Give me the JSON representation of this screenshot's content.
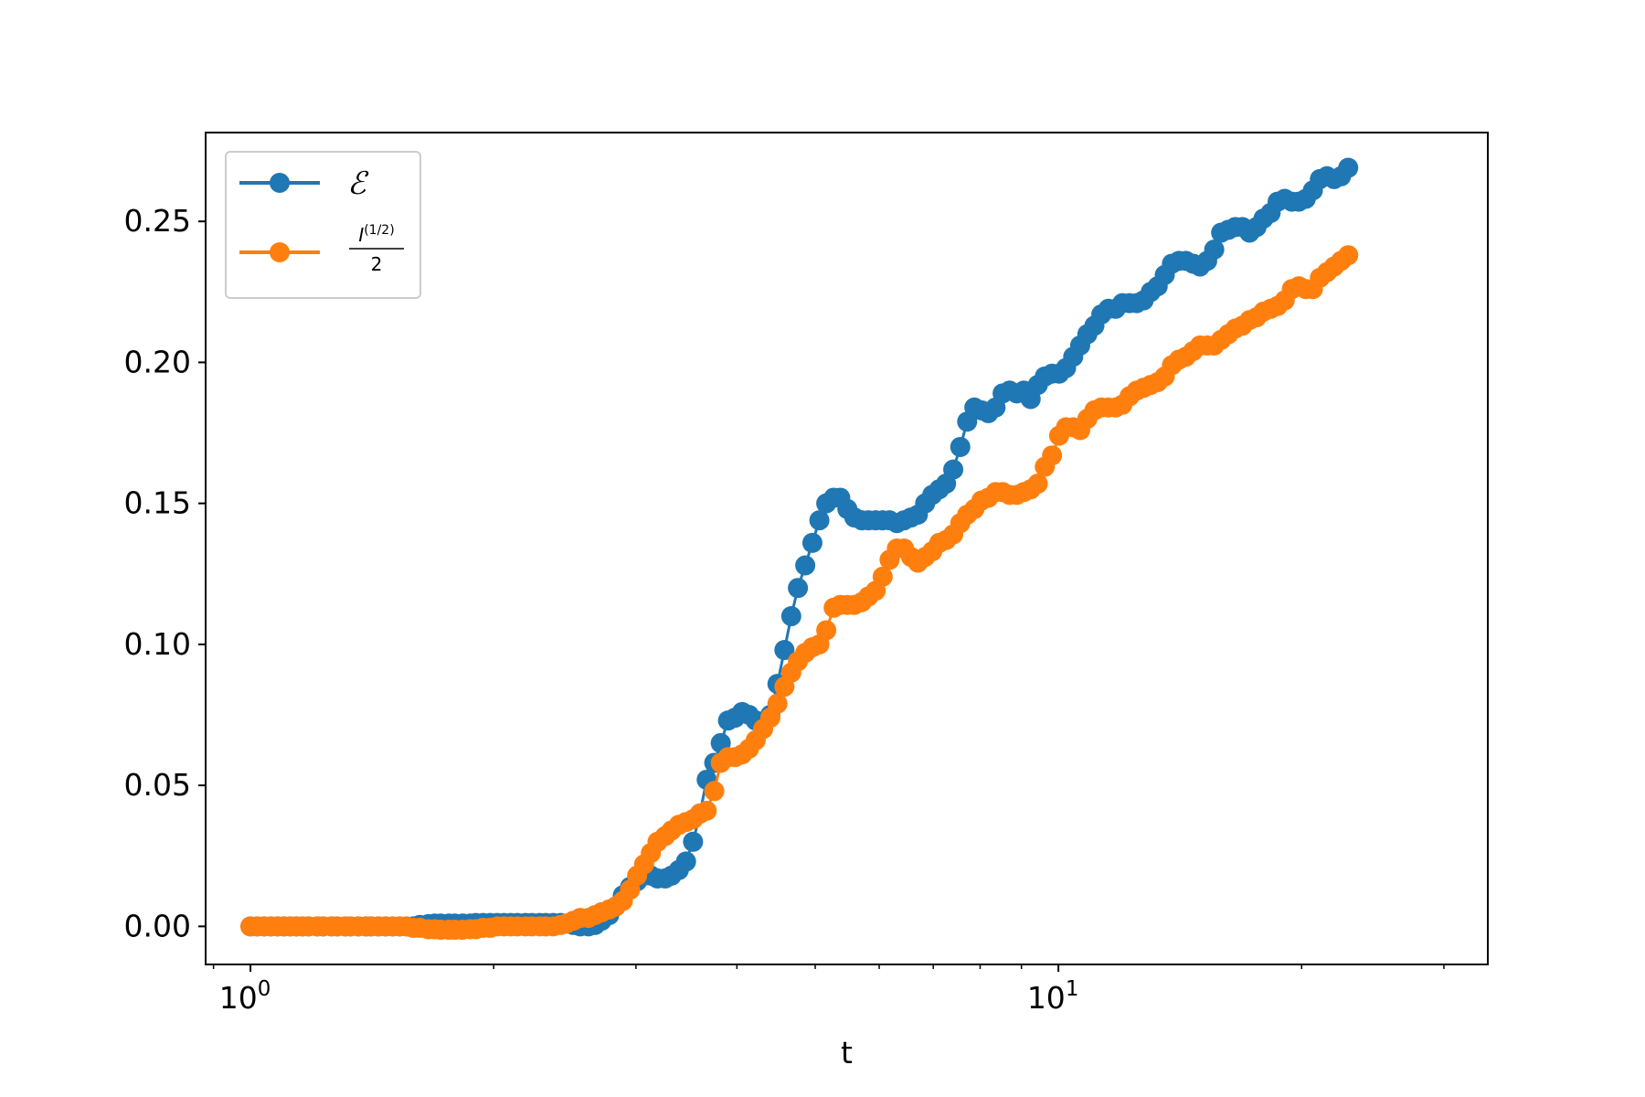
{
  "chart_data": {
    "type": "line",
    "title": "",
    "xlabel": "t",
    "ylabel": "",
    "xscale": "log",
    "xlim": [
      0.88,
      34
    ],
    "ylim": [
      -0.0135,
      0.2815
    ],
    "grid": false,
    "legend_position": "top-left",
    "x_ticks": [
      {
        "value": 1,
        "label": "10",
        "exp": "0"
      },
      {
        "value": 10,
        "label": "10",
        "exp": "1"
      }
    ],
    "y_ticks": [
      "0.00",
      "0.05",
      "0.10",
      "0.15",
      "0.20",
      "0.25"
    ],
    "series": [
      {
        "name": "ℰ",
        "color": "#1f77b4",
        "points": [
          [
            1.0,
            0.0
          ],
          [
            1.02,
            0.0
          ],
          [
            1.04,
            0.0
          ],
          [
            1.06,
            0.0
          ],
          [
            1.08,
            0.0
          ],
          [
            1.1,
            0.0
          ],
          [
            1.12,
            0.0
          ],
          [
            1.14,
            0.0
          ],
          [
            1.16,
            0.0
          ],
          [
            1.18,
            0.0
          ],
          [
            1.21,
            0.0
          ],
          [
            1.23,
            0.0
          ],
          [
            1.26,
            0.0
          ],
          [
            1.28,
            0.0
          ],
          [
            1.31,
            0.0
          ],
          [
            1.33,
            0.0
          ],
          [
            1.36,
            0.0
          ],
          [
            1.39,
            0.0
          ],
          [
            1.41,
            0.0
          ],
          [
            1.44,
            0.0
          ],
          [
            1.47,
            0.0
          ],
          [
            1.5,
            0.0
          ],
          [
            1.53,
            0.0
          ],
          [
            1.56,
            0.0
          ],
          [
            1.59,
            0.0
          ],
          [
            1.62,
            0.0005
          ],
          [
            1.66,
            0.0008
          ],
          [
            1.69,
            0.001
          ],
          [
            1.72,
            0.001
          ],
          [
            1.76,
            0.001
          ],
          [
            1.79,
            0.001
          ],
          [
            1.83,
            0.001
          ],
          [
            1.87,
            0.001
          ],
          [
            1.9,
            0.0012
          ],
          [
            1.94,
            0.0012
          ],
          [
            1.98,
            0.0012
          ],
          [
            2.02,
            0.0012
          ],
          [
            2.06,
            0.0012
          ],
          [
            2.1,
            0.0012
          ],
          [
            2.14,
            0.0012
          ],
          [
            2.19,
            0.0012
          ],
          [
            2.23,
            0.0012
          ],
          [
            2.28,
            0.0012
          ],
          [
            2.32,
            0.0012
          ],
          [
            2.37,
            0.0012
          ],
          [
            2.42,
            0.0012
          ],
          [
            2.46,
            0.001
          ],
          [
            2.51,
            0.0005
          ],
          [
            2.56,
            0.0
          ],
          [
            2.62,
            0.0
          ],
          [
            2.67,
            0.0005
          ],
          [
            2.72,
            0.002
          ],
          [
            2.78,
            0.004
          ],
          [
            2.83,
            0.007
          ],
          [
            2.89,
            0.011
          ],
          [
            2.95,
            0.014
          ],
          [
            3.01,
            0.016
          ],
          [
            3.07,
            0.018
          ],
          [
            3.13,
            0.018
          ],
          [
            3.19,
            0.017
          ],
          [
            3.26,
            0.017
          ],
          [
            3.32,
            0.018
          ],
          [
            3.39,
            0.02
          ],
          [
            3.46,
            0.023
          ],
          [
            3.53,
            0.03
          ],
          [
            3.6,
            0.04
          ],
          [
            3.67,
            0.052
          ],
          [
            3.75,
            0.058
          ],
          [
            3.82,
            0.065
          ],
          [
            3.9,
            0.073
          ],
          [
            3.98,
            0.074
          ],
          [
            4.06,
            0.076
          ],
          [
            4.14,
            0.075
          ],
          [
            4.22,
            0.073
          ],
          [
            4.31,
            0.072
          ],
          [
            4.4,
            0.075
          ],
          [
            4.49,
            0.086
          ],
          [
            4.58,
            0.098
          ],
          [
            4.67,
            0.11
          ],
          [
            4.76,
            0.12
          ],
          [
            4.86,
            0.128
          ],
          [
            4.96,
            0.136
          ],
          [
            5.06,
            0.144
          ],
          [
            5.16,
            0.15
          ],
          [
            5.27,
            0.152
          ],
          [
            5.37,
            0.152
          ],
          [
            5.48,
            0.148
          ],
          [
            5.59,
            0.145
          ],
          [
            5.71,
            0.144
          ],
          [
            5.82,
            0.144
          ],
          [
            5.94,
            0.144
          ],
          [
            6.06,
            0.144
          ],
          [
            6.18,
            0.144
          ],
          [
            6.31,
            0.143
          ],
          [
            6.44,
            0.144
          ],
          [
            6.57,
            0.145
          ],
          [
            6.7,
            0.146
          ],
          [
            6.84,
            0.15
          ],
          [
            6.98,
            0.153
          ],
          [
            7.12,
            0.155
          ],
          [
            7.26,
            0.157
          ],
          [
            7.41,
            0.162
          ],
          [
            7.56,
            0.17
          ],
          [
            7.71,
            0.179
          ],
          [
            7.87,
            0.184
          ],
          [
            8.03,
            0.183
          ],
          [
            8.19,
            0.182
          ],
          [
            8.36,
            0.184
          ],
          [
            8.53,
            0.189
          ],
          [
            8.7,
            0.19
          ],
          [
            8.88,
            0.189
          ],
          [
            9.06,
            0.19
          ],
          [
            9.24,
            0.187
          ],
          [
            9.43,
            0.192
          ],
          [
            9.62,
            0.195
          ],
          [
            9.82,
            0.196
          ],
          [
            10.02,
            0.196
          ],
          [
            10.22,
            0.198
          ],
          [
            10.43,
            0.202
          ],
          [
            10.64,
            0.206
          ],
          [
            10.86,
            0.21
          ],
          [
            11.08,
            0.213
          ],
          [
            11.3,
            0.217
          ],
          [
            11.53,
            0.219
          ],
          [
            11.77,
            0.219
          ],
          [
            12.0,
            0.221
          ],
          [
            12.25,
            0.221
          ],
          [
            12.5,
            0.221
          ],
          [
            12.75,
            0.222
          ],
          [
            13.01,
            0.225
          ],
          [
            13.27,
            0.227
          ],
          [
            13.54,
            0.231
          ],
          [
            13.82,
            0.235
          ],
          [
            14.1,
            0.236
          ],
          [
            14.38,
            0.236
          ],
          [
            14.68,
            0.235
          ],
          [
            14.97,
            0.234
          ],
          [
            15.28,
            0.236
          ],
          [
            15.59,
            0.24
          ],
          [
            15.9,
            0.246
          ],
          [
            16.23,
            0.247
          ],
          [
            16.56,
            0.248
          ],
          [
            16.89,
            0.248
          ],
          [
            17.24,
            0.246
          ],
          [
            17.59,
            0.248
          ],
          [
            17.94,
            0.251
          ],
          [
            18.31,
            0.253
          ],
          [
            18.68,
            0.257
          ],
          [
            19.06,
            0.258
          ],
          [
            19.45,
            0.257
          ],
          [
            19.84,
            0.257
          ],
          [
            20.24,
            0.258
          ],
          [
            20.65,
            0.261
          ],
          [
            21.07,
            0.265
          ],
          [
            21.5,
            0.266
          ],
          [
            21.94,
            0.265
          ],
          [
            22.38,
            0.266
          ],
          [
            22.84,
            0.269
          ]
        ]
      },
      {
        "name": "I^(1/2) / 2",
        "color": "#ff7f0e",
        "points": [
          [
            1.0,
            0.0
          ],
          [
            1.02,
            0.0
          ],
          [
            1.04,
            0.0
          ],
          [
            1.06,
            0.0
          ],
          [
            1.08,
            0.0
          ],
          [
            1.1,
            0.0
          ],
          [
            1.12,
            0.0
          ],
          [
            1.14,
            0.0
          ],
          [
            1.16,
            0.0
          ],
          [
            1.18,
            0.0
          ],
          [
            1.21,
            0.0
          ],
          [
            1.23,
            0.0
          ],
          [
            1.26,
            0.0
          ],
          [
            1.28,
            0.0
          ],
          [
            1.31,
            0.0
          ],
          [
            1.33,
            0.0
          ],
          [
            1.36,
            0.0
          ],
          [
            1.39,
            0.0
          ],
          [
            1.41,
            0.0
          ],
          [
            1.44,
            0.0
          ],
          [
            1.47,
            0.0
          ],
          [
            1.5,
            0.0
          ],
          [
            1.53,
            0.0
          ],
          [
            1.56,
            0.0
          ],
          [
            1.59,
            -0.0005
          ],
          [
            1.62,
            -0.0005
          ],
          [
            1.66,
            -0.001
          ],
          [
            1.69,
            -0.001
          ],
          [
            1.72,
            -0.0012
          ],
          [
            1.76,
            -0.0012
          ],
          [
            1.79,
            -0.0012
          ],
          [
            1.83,
            -0.0012
          ],
          [
            1.87,
            -0.001
          ],
          [
            1.9,
            -0.001
          ],
          [
            1.94,
            -0.0005
          ],
          [
            1.98,
            -0.0005
          ],
          [
            2.02,
            0.0
          ],
          [
            2.06,
            0.0
          ],
          [
            2.1,
            0.0
          ],
          [
            2.14,
            0.0
          ],
          [
            2.19,
            0.0
          ],
          [
            2.23,
            0.0
          ],
          [
            2.28,
            0.0
          ],
          [
            2.32,
            0.0
          ],
          [
            2.37,
            0.0
          ],
          [
            2.42,
            0.0005
          ],
          [
            2.46,
            0.001
          ],
          [
            2.51,
            0.002
          ],
          [
            2.56,
            0.003
          ],
          [
            2.62,
            0.003
          ],
          [
            2.67,
            0.004
          ],
          [
            2.72,
            0.005
          ],
          [
            2.78,
            0.006
          ],
          [
            2.83,
            0.007
          ],
          [
            2.89,
            0.009
          ],
          [
            2.95,
            0.013
          ],
          [
            3.01,
            0.018
          ],
          [
            3.07,
            0.022
          ],
          [
            3.13,
            0.026
          ],
          [
            3.19,
            0.03
          ],
          [
            3.26,
            0.032
          ],
          [
            3.32,
            0.034
          ],
          [
            3.39,
            0.036
          ],
          [
            3.46,
            0.037
          ],
          [
            3.53,
            0.038
          ],
          [
            3.6,
            0.04
          ],
          [
            3.67,
            0.041
          ],
          [
            3.75,
            0.048
          ],
          [
            3.82,
            0.058
          ],
          [
            3.9,
            0.06
          ],
          [
            3.98,
            0.06
          ],
          [
            4.06,
            0.061
          ],
          [
            4.14,
            0.063
          ],
          [
            4.22,
            0.066
          ],
          [
            4.31,
            0.07
          ],
          [
            4.4,
            0.074
          ],
          [
            4.49,
            0.079
          ],
          [
            4.58,
            0.085
          ],
          [
            4.67,
            0.09
          ],
          [
            4.76,
            0.094
          ],
          [
            4.86,
            0.097
          ],
          [
            4.96,
            0.099
          ],
          [
            5.06,
            0.1
          ],
          [
            5.16,
            0.105
          ],
          [
            5.27,
            0.113
          ],
          [
            5.37,
            0.114
          ],
          [
            5.48,
            0.114
          ],
          [
            5.59,
            0.114
          ],
          [
            5.71,
            0.115
          ],
          [
            5.82,
            0.117
          ],
          [
            5.94,
            0.119
          ],
          [
            6.06,
            0.124
          ],
          [
            6.18,
            0.13
          ],
          [
            6.31,
            0.134
          ],
          [
            6.44,
            0.134
          ],
          [
            6.57,
            0.131
          ],
          [
            6.7,
            0.129
          ],
          [
            6.84,
            0.131
          ],
          [
            6.98,
            0.133
          ],
          [
            7.12,
            0.136
          ],
          [
            7.26,
            0.137
          ],
          [
            7.41,
            0.139
          ],
          [
            7.56,
            0.143
          ],
          [
            7.71,
            0.146
          ],
          [
            7.87,
            0.148
          ],
          [
            8.03,
            0.151
          ],
          [
            8.19,
            0.152
          ],
          [
            8.36,
            0.154
          ],
          [
            8.53,
            0.154
          ],
          [
            8.7,
            0.153
          ],
          [
            8.88,
            0.153
          ],
          [
            9.06,
            0.154
          ],
          [
            9.24,
            0.155
          ],
          [
            9.43,
            0.157
          ],
          [
            9.62,
            0.163
          ],
          [
            9.82,
            0.167
          ],
          [
            10.02,
            0.174
          ],
          [
            10.22,
            0.177
          ],
          [
            10.43,
            0.177
          ],
          [
            10.64,
            0.176
          ],
          [
            10.86,
            0.18
          ],
          [
            11.08,
            0.183
          ],
          [
            11.3,
            0.184
          ],
          [
            11.53,
            0.184
          ],
          [
            11.77,
            0.184
          ],
          [
            12.0,
            0.185
          ],
          [
            12.25,
            0.188
          ],
          [
            12.5,
            0.19
          ],
          [
            12.75,
            0.191
          ],
          [
            13.01,
            0.192
          ],
          [
            13.27,
            0.193
          ],
          [
            13.54,
            0.195
          ],
          [
            13.82,
            0.199
          ],
          [
            14.1,
            0.201
          ],
          [
            14.38,
            0.202
          ],
          [
            14.68,
            0.204
          ],
          [
            14.97,
            0.206
          ],
          [
            15.28,
            0.206
          ],
          [
            15.59,
            0.206
          ],
          [
            15.9,
            0.208
          ],
          [
            16.23,
            0.21
          ],
          [
            16.56,
            0.212
          ],
          [
            16.89,
            0.213
          ],
          [
            17.24,
            0.215
          ],
          [
            17.59,
            0.216
          ],
          [
            17.94,
            0.218
          ],
          [
            18.31,
            0.219
          ],
          [
            18.68,
            0.22
          ],
          [
            19.06,
            0.222
          ],
          [
            19.45,
            0.226
          ],
          [
            19.84,
            0.227
          ],
          [
            20.24,
            0.226
          ],
          [
            20.65,
            0.226
          ],
          [
            21.07,
            0.23
          ],
          [
            21.5,
            0.232
          ],
          [
            21.94,
            0.234
          ],
          [
            22.38,
            0.236
          ],
          [
            22.84,
            0.238
          ]
        ]
      }
    ]
  }
}
